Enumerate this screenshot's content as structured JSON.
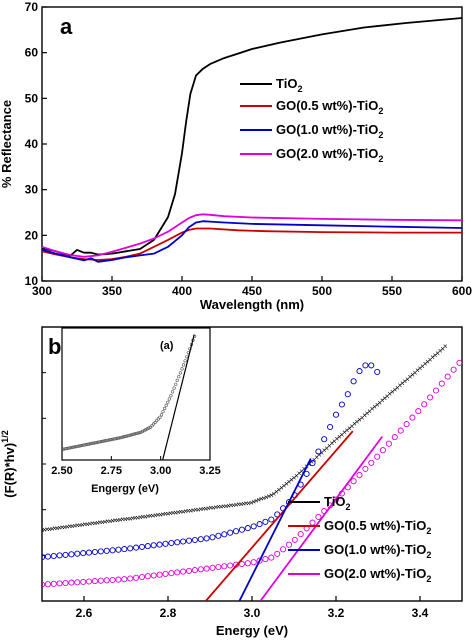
{
  "chart_data": [
    {
      "panel": "a",
      "type": "line",
      "xlabel": "Wavelength (nm)",
      "ylabel": "% Reflectance",
      "xlim": [
        300,
        600
      ],
      "ylim": [
        10,
        70
      ],
      "xticks": [
        "300",
        "350",
        "400",
        "450",
        "500",
        "550",
        "600"
      ],
      "yticks": [
        "10",
        "20",
        "30",
        "40",
        "50",
        "60",
        "70"
      ],
      "legend_position": "right",
      "colors": {
        "tio2": "#000000",
        "go05": "#cc0000",
        "go10": "#0000cc",
        "go20": "#dd00dd"
      },
      "series": [
        {
          "name": "TiO2",
          "key": "tio2",
          "x": [
            300,
            310,
            320,
            325,
            330,
            335,
            340,
            350,
            360,
            370,
            380,
            385,
            390,
            395,
            400,
            403,
            406,
            410,
            415,
            420,
            430,
            440,
            450,
            470,
            500,
            530,
            560,
            600
          ],
          "y": [
            17.2,
            16.5,
            15.5,
            16.8,
            16.2,
            16.2,
            15.8,
            16.0,
            16.5,
            17.0,
            19.0,
            21.5,
            24.0,
            29.0,
            38.0,
            45.0,
            51.0,
            55.0,
            56.5,
            57.5,
            58.8,
            59.8,
            60.8,
            62.2,
            64.0,
            65.5,
            66.5,
            67.6
          ]
        },
        {
          "name": "GO(0.5 wt%)-TiO2",
          "key": "go05",
          "x": [
            300,
            310,
            320,
            330,
            340,
            350,
            360,
            370,
            380,
            390,
            400,
            405,
            410,
            420,
            440,
            460,
            500,
            550,
            600
          ],
          "y": [
            16.5,
            15.8,
            15.2,
            14.8,
            14.6,
            14.8,
            15.3,
            16.0,
            17.5,
            19.0,
            20.6,
            21.2,
            21.5,
            21.5,
            21.1,
            20.9,
            20.7,
            20.6,
            20.6
          ]
        },
        {
          "name": "GO(1.0 wt%)-TiO2",
          "key": "go10",
          "x": [
            300,
            310,
            320,
            330,
            335,
            340,
            350,
            360,
            370,
            380,
            390,
            400,
            405,
            410,
            415,
            420,
            430,
            450,
            500,
            550,
            600
          ],
          "y": [
            16.8,
            16.0,
            15.2,
            14.5,
            15.0,
            14.2,
            14.6,
            15.2,
            15.6,
            16.0,
            17.5,
            20.0,
            21.8,
            22.8,
            23.1,
            23.0,
            22.8,
            22.5,
            22.2,
            21.9,
            21.6
          ]
        },
        {
          "name": "GO(2.0 wt%)-TiO2",
          "key": "go20",
          "x": [
            300,
            310,
            320,
            330,
            340,
            350,
            360,
            370,
            380,
            390,
            400,
            405,
            410,
            415,
            420,
            430,
            450,
            500,
            550,
            600
          ],
          "y": [
            17.5,
            16.5,
            15.7,
            15.3,
            15.6,
            16.4,
            17.3,
            18.2,
            19.3,
            20.8,
            22.8,
            23.8,
            24.4,
            24.6,
            24.5,
            24.2,
            23.9,
            23.6,
            23.4,
            23.3
          ]
        }
      ],
      "legend": {
        "tio2": {
          "base": "TiO",
          "sub": "2"
        },
        "go05": {
          "base": "GO(0.5 wt%)-TiO",
          "sub": "2"
        },
        "go10": {
          "base": "GO(1.0 wt%)-TiO",
          "sub": "2"
        },
        "go20": {
          "base": "GO(2.0 wt%)-TiO",
          "sub": "2"
        }
      }
    },
    {
      "panel": "b",
      "type": "scatter",
      "xlabel": "Energy  (eV)",
      "ylabel": "(F(R)*hv)",
      "ylabel_sup": "1/2",
      "xlim": [
        2.5,
        3.5
      ],
      "ylim": [
        0,
        1
      ],
      "xticks": [
        "2.6",
        "2.8",
        "3.0",
        "3.2",
        "3.4"
      ],
      "legend_position": "bottom-right",
      "colors": {
        "tio2": "#000000",
        "go05": "#cc0000",
        "go10": "#0000cc",
        "go20": "#dd00dd"
      },
      "series": [
        {
          "name": "GO(0.5 wt%)-TiO2",
          "key": "go05",
          "x": [
            2.5,
            2.7,
            2.9,
            3.0,
            3.05,
            3.1,
            3.2,
            3.3,
            3.4,
            3.46
          ],
          "y": [
            0.26,
            0.3,
            0.34,
            0.36,
            0.39,
            0.45,
            0.59,
            0.72,
            0.85,
            0.93
          ]
        },
        {
          "name": "GO(1.0 wt%)-TiO2",
          "key": "go10",
          "x": [
            2.5,
            2.7,
            2.9,
            3.0,
            3.05,
            3.1,
            3.15,
            3.2,
            3.23,
            3.25,
            3.27,
            3.29,
            3.3,
            3.31
          ],
          "y": [
            0.16,
            0.19,
            0.23,
            0.27,
            0.3,
            0.38,
            0.52,
            0.68,
            0.76,
            0.83,
            0.86,
            0.86,
            0.83,
            0.86
          ]
        },
        {
          "name": "GO(2.0 wt%)-TiO2",
          "key": "go20",
          "x": [
            2.5,
            2.7,
            2.9,
            3.0,
            3.05,
            3.1,
            3.2,
            3.3,
            3.4,
            3.5
          ],
          "y": [
            0.06,
            0.08,
            0.12,
            0.14,
            0.16,
            0.22,
            0.37,
            0.53,
            0.7,
            0.88
          ]
        }
      ],
      "tangents": [
        {
          "key": "go05",
          "x": [
            2.89,
            3.24
          ],
          "y": [
            0.0,
            0.62
          ]
        },
        {
          "key": "go10",
          "x": [
            2.97,
            3.14
          ],
          "y": [
            0.0,
            0.52
          ]
        },
        {
          "key": "go20",
          "x": [
            3.02,
            3.31
          ],
          "y": [
            0.0,
            0.6
          ]
        }
      ],
      "legend": {
        "tio2": {
          "base": "TiO",
          "sub": "2"
        },
        "go05": {
          "base": "GO(0.5 wt%)-TiO",
          "sub": "2"
        },
        "go10": {
          "base": "GO(1.0 wt%)-TiO",
          "sub": "2"
        },
        "go20": {
          "base": "GO(2.0 wt%)-TiO",
          "sub": "2"
        }
      },
      "inset": {
        "panel": "(a)",
        "xlabel": "Engergy (eV)",
        "xlim": [
          2.5,
          3.25
        ],
        "ylim": [
          0,
          1
        ],
        "xticks": [
          "2.50",
          "2.75",
          "3.00",
          "3.25"
        ],
        "series": {
          "name": "TiO2",
          "x": [
            2.5,
            2.6,
            2.7,
            2.8,
            2.9,
            2.95,
            3.0,
            3.05,
            3.1,
            3.15,
            3.18
          ],
          "y": [
            0.08,
            0.11,
            0.14,
            0.17,
            0.21,
            0.25,
            0.33,
            0.48,
            0.66,
            0.85,
            0.97
          ]
        },
        "tangent": {
          "x": [
            3.01,
            3.17
          ],
          "y": [
            0.0,
            0.95
          ]
        }
      }
    }
  ]
}
